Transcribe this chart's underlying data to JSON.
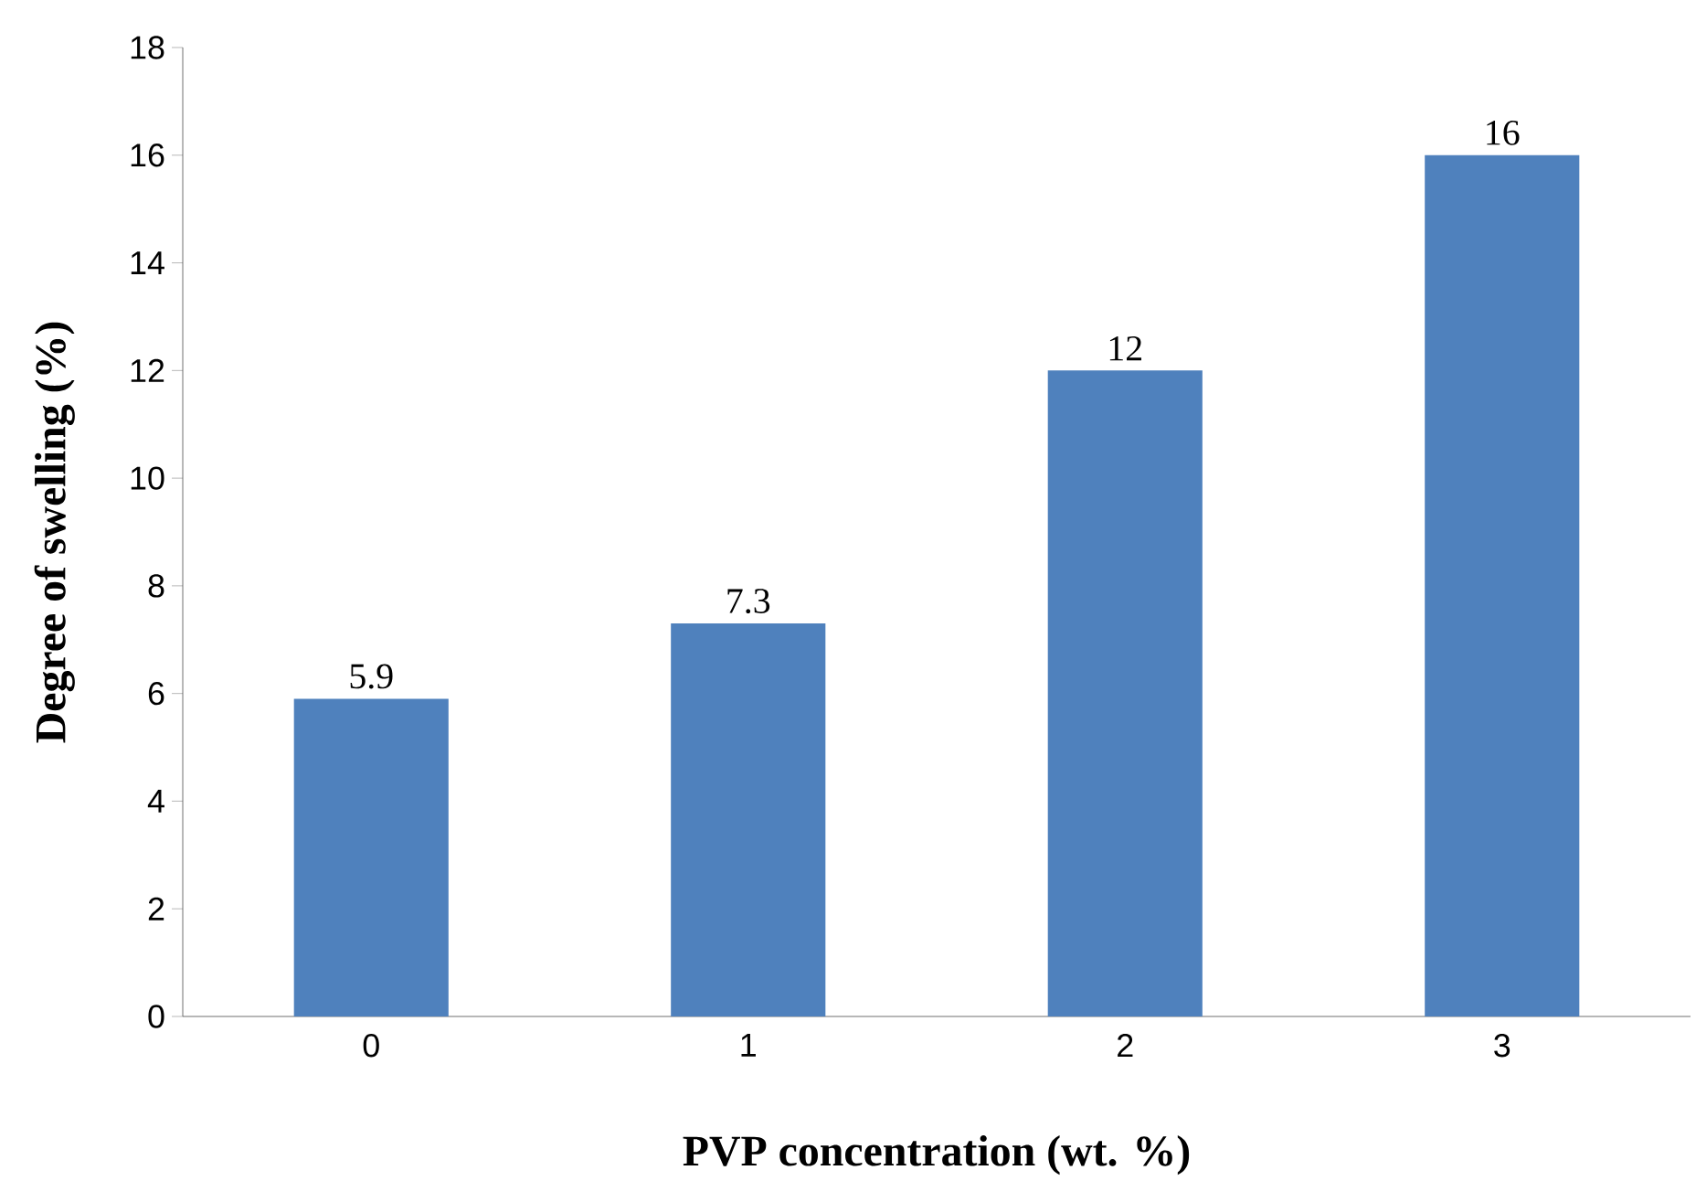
{
  "chart_data": {
    "type": "bar",
    "xlabel": "PVP concentration (wt. %)",
    "ylabel": "Degree of swelling (%)",
    "categories": [
      "0",
      "1",
      "2",
      "3"
    ],
    "values": [
      5.9,
      7.3,
      12,
      16
    ],
    "color": "#4f81bd",
    "ylim": [
      0,
      18
    ],
    "yticks": [
      0,
      2,
      4,
      6,
      8,
      10,
      12,
      14,
      16,
      18
    ],
    "data_labels": true,
    "grid": false
  }
}
